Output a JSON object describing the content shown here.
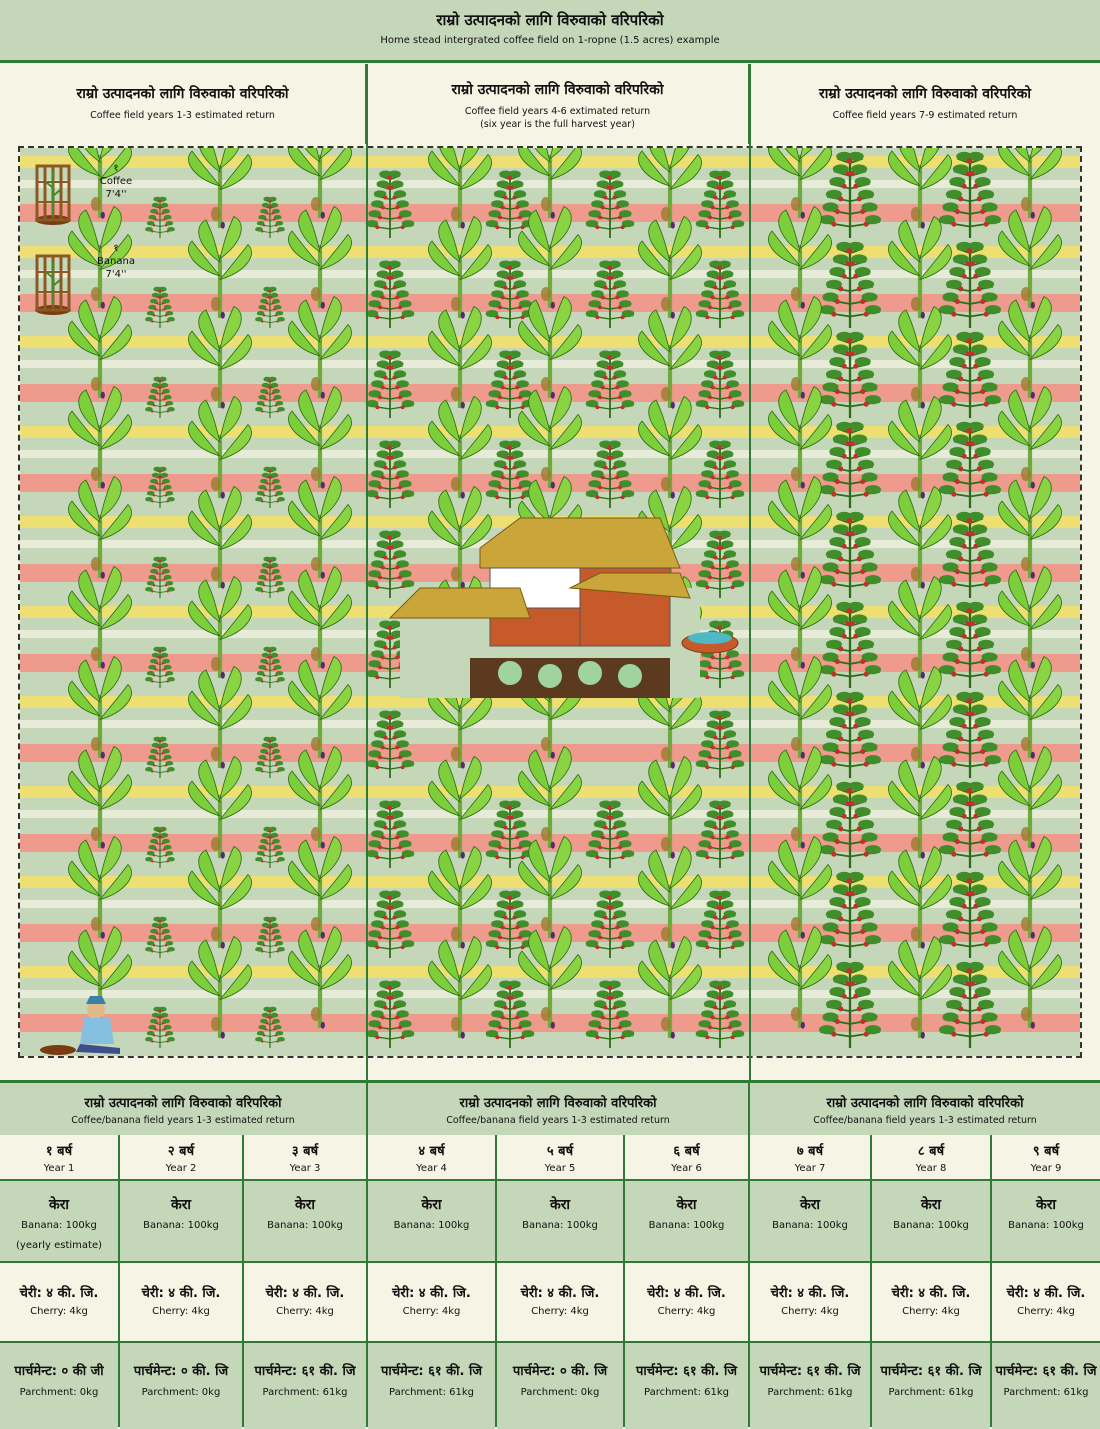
{
  "header": {
    "title_np": "राम्रो उत्पादनको लागि विरुवाको वरिपरिको",
    "subtitle_en": "Home stead intergrated coffee field on 1-ropne (1.5 acres) example"
  },
  "sections": [
    {
      "title_np": "राम्रो उत्पादनको लागि विरुवाको वरिपरिको",
      "subtitle_en": "Coffee field years 1-3 estimated return"
    },
    {
      "title_np": "राम्रो उत्पादनको लागि विरुवाको वरिपरिको",
      "subtitle_en": "Coffee field years 4-6 extimated return\n(six year is the full harvest year)"
    },
    {
      "title_np": "राम्रो उत्पादनको लागि विरुवाको वरिपरिको",
      "subtitle_en": "Coffee field years 7-9 estimated return"
    }
  ],
  "legend": {
    "coffee": {
      "num": "१",
      "name": "Coffee",
      "spacing": "7'4''"
    },
    "banana": {
      "num": "१",
      "name": "Banana",
      "spacing": "7'4''"
    }
  },
  "colors": {
    "pink": "#ee9a8c",
    "yellow": "#f2e06a",
    "sage": "#c5d7b9",
    "green": "#2f7a35",
    "cream": "#f6f4e4"
  },
  "bottom_sections": [
    {
      "title_np": "राम्रो उत्पादनको लागि विरुवाको वरिपरिको",
      "subtitle_en": "Coffee/banana field years 1-3 estimated return"
    },
    {
      "title_np": "राम्रो उत्पादनको लागि विरुवाको वरिपरिको",
      "subtitle_en": "Coffee/banana field years 1-3 estimated return"
    },
    {
      "title_np": "राम्रो उत्पादनको लागि विरुवाको वरिपरिको",
      "subtitle_en": "Coffee/banana field years 1-3 estimated return"
    }
  ],
  "years": [
    {
      "np": "१ बर्ष",
      "en": "Year 1",
      "banana_np": "केरा",
      "banana_en": "Banana: 100kg",
      "banana_note": "(yearly estimate)",
      "cherry_np": "चेरी: ४ की. जि.",
      "cherry_en": "Cherry: 4kg",
      "parch_np": "पार्चमेन्ट: ० की जी",
      "parch_en": "Parchment: 0kg"
    },
    {
      "np": "२ बर्ष",
      "en": "Year 2",
      "banana_np": "केरा",
      "banana_en": "Banana: 100kg",
      "banana_note": "",
      "cherry_np": "चेरी: ४ की. जि.",
      "cherry_en": "Cherry: 4kg",
      "parch_np": "पार्चमेन्ट: ० की. जि",
      "parch_en": "Parchment: 0kg"
    },
    {
      "np": "३ बर्ष",
      "en": "Year 3",
      "banana_np": "केरा",
      "banana_en": "Banana: 100kg",
      "banana_note": "",
      "cherry_np": "चेरी: ४ की. जि.",
      "cherry_en": "Cherry: 4kg",
      "parch_np": "पार्चमेन्ट: ६१ की. जि",
      "parch_en": "Parchment: 61kg"
    },
    {
      "np": "४ बर्ष",
      "en": "Year 4",
      "banana_np": "केरा",
      "banana_en": "Banana: 100kg",
      "banana_note": "",
      "cherry_np": "चेरी: ४ की. जि.",
      "cherry_en": "Cherry: 4kg",
      "parch_np": "पार्चमेन्ट: ६१ की. जि",
      "parch_en": "Parchment: 61kg"
    },
    {
      "np": "५ बर्ष",
      "en": "Year 5",
      "banana_np": "केरा",
      "banana_en": "Banana: 100kg",
      "banana_note": "",
      "cherry_np": "चेरी: ४ की. जि.",
      "cherry_en": "Cherry: 4kg",
      "parch_np": "पार्चमेन्ट: ० की. जि",
      "parch_en": "Parchment: 0kg"
    },
    {
      "np": "६ बर्ष",
      "en": "Year 6",
      "banana_np": "केरा",
      "banana_en": "Banana: 100kg",
      "banana_note": "",
      "cherry_np": "चेरी: ४ की. जि.",
      "cherry_en": "Cherry: 4kg",
      "parch_np": "पार्चमेन्ट: ६१ की. जि",
      "parch_en": "Parchment: 61kg"
    },
    {
      "np": "७ बर्ष",
      "en": "Year 7",
      "banana_np": "केरा",
      "banana_en": "Banana: 100kg",
      "banana_note": "",
      "cherry_np": "चेरी: ४ की. जि.",
      "cherry_en": "Cherry: 4kg",
      "parch_np": "पार्चमेन्ट: ६१ की. जि",
      "parch_en": "Parchment: 61kg"
    },
    {
      "np": "८ बर्ष",
      "en": "Year 8",
      "banana_np": "केरा",
      "banana_en": "Banana: 100kg",
      "banana_note": "",
      "cherry_np": "चेरी: ४ की. जि.",
      "cherry_en": "Cherry: 4kg",
      "parch_np": "पार्चमेन्ट: ६१ की. जि",
      "parch_en": "Parchment: 61kg"
    },
    {
      "np": "९ बर्ष",
      "en": "Year 9",
      "banana_np": "केरा",
      "banana_en": "Banana: 100kg",
      "banana_note": "",
      "cherry_np": "चेरी: ४ की. जि.",
      "cherry_en": "Cherry: 4kg",
      "parch_np": "पार्चमेन्ट: ६१ की. जि",
      "parch_en": "Parchment: 61kg"
    }
  ]
}
